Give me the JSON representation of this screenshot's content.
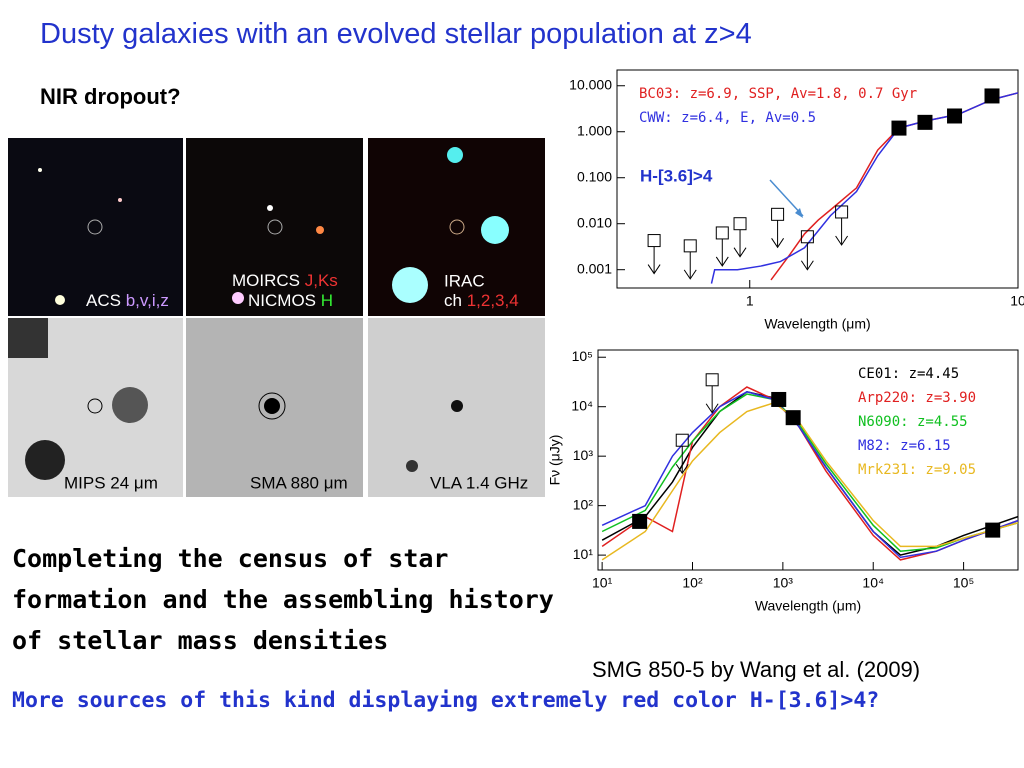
{
  "title": "Dusty galaxies with an evolved stellar population at z>4",
  "subtitle": "NIR dropout?",
  "panels": [
    {
      "label": "ACS",
      "bands": "b,v,i,z"
    },
    {
      "label": "MOIRCS",
      "bands": "J,Ks",
      "label2": "NICMOS",
      "bands2": "H"
    },
    {
      "label": "IRAC",
      "label2": "ch",
      "bands2": "1,2,3,4"
    },
    {
      "label": "MIPS 24 μm"
    },
    {
      "label": "SMA 880 μm"
    },
    {
      "label": "VLA 1.4 GHz"
    }
  ],
  "body": "Completing the census of star formation and the assembling history of stellar mass densities",
  "caption": "SMG 850-5 by Wang et al. (2009)",
  "question": "More sources of this kind displaying extremely red color H-[3.6]>4?",
  "chart_data": [
    {
      "type": "line",
      "xlabel": "Wavelength (μm)",
      "xscale": "log",
      "yscale": "log",
      "xlim": [
        0.32,
        10
      ],
      "ylim": [
        0.0004,
        22
      ],
      "xticks": [
        1,
        10
      ],
      "yticks": [
        {
          "value": 10,
          "label": "10.000"
        },
        {
          "value": 1,
          "label": "1.000"
        },
        {
          "value": 0.1,
          "label": "0.100"
        },
        {
          "value": 0.01,
          "label": "0.010"
        },
        {
          "value": 0.001,
          "label": "0.001"
        }
      ],
      "legend": "upper left",
      "annotation": "H-[3.6]>4",
      "series": [
        {
          "name": "BC03: z=6.9, SSP, Av=1.8, 0.7 Gyr",
          "color": "#e02020",
          "marker": "none",
          "x": [
            1.2,
            1.4,
            1.6,
            1.8,
            2.0,
            2.5,
            3,
            3.6,
            4.5,
            6,
            8,
            10
          ],
          "values": [
            0.0006,
            0.002,
            0.006,
            0.012,
            0.02,
            0.06,
            0.4,
            1.2,
            1.7,
            2.4,
            5,
            7
          ]
        },
        {
          "name": "CWW:  z=6.4, E, Av=0.5",
          "color": "#3030e0",
          "marker": "none",
          "x": [
            0.72,
            0.74,
            0.9,
            1.1,
            1.3,
            1.6,
            2,
            2.5,
            3,
            3.6,
            4.5,
            6,
            8,
            10
          ],
          "values": [
            0.0005,
            0.001,
            0.001,
            0.0012,
            0.0015,
            0.003,
            0.015,
            0.05,
            0.3,
            1.2,
            1.7,
            2.4,
            5,
            7
          ]
        },
        {
          "color": "#000000",
          "marker": "square-filled",
          "x": [
            3.6,
            4.5,
            5.8,
            8.0
          ],
          "values": [
            1.2,
            1.6,
            2.2,
            6
          ]
        },
        {
          "color": "#000000",
          "marker": "square-open",
          "x": [
            0.44,
            0.6,
            0.79,
            0.92,
            1.27,
            1.64,
            2.2
          ],
          "values": [
            0.0043,
            0.0033,
            0.0063,
            0.01,
            0.016,
            0.0052,
            0.018
          ]
        }
      ]
    },
    {
      "type": "line",
      "xlabel": "Wavelength (μm)",
      "ylabel": "Fν (μJy)",
      "xscale": "log",
      "yscale": "log",
      "xlim": [
        9,
        400000
      ],
      "ylim": [
        5,
        140000
      ],
      "xticks": [
        {
          "value": 10,
          "label": "10¹"
        },
        {
          "value": 100,
          "label": "10²"
        },
        {
          "value": 1000,
          "label": "10³"
        },
        {
          "value": 10000,
          "label": "10⁴"
        },
        {
          "value": 100000,
          "label": "10⁵"
        }
      ],
      "yticks": [
        {
          "value": 10,
          "label": "10¹"
        },
        {
          "value": 100,
          "label": "10²"
        },
        {
          "value": 1000,
          "label": "10³"
        },
        {
          "value": 10000,
          "label": "10⁴"
        },
        {
          "value": 100000,
          "label": "10⁵"
        }
      ],
      "legend": "upper right",
      "series": [
        {
          "name": "CE01: z=4.45",
          "color": "#000000",
          "marker": "none",
          "x": [
            10,
            30,
            60,
            100,
            200,
            400,
            800,
            1500,
            3000,
            10000,
            20000,
            50000,
            100000,
            400000
          ],
          "values": [
            20,
            60,
            300,
            1500,
            8000,
            20000,
            15000,
            4000,
            600,
            30,
            10,
            15,
            25,
            60
          ]
        },
        {
          "name": "Arp220: z=3.90",
          "color": "#e02020",
          "marker": "none",
          "x": [
            10,
            30,
            60,
            100,
            200,
            400,
            800,
            1500,
            3000,
            10000,
            20000,
            50000,
            100000,
            400000
          ],
          "values": [
            15,
            60,
            30,
            2000,
            10000,
            25000,
            14000,
            4000,
            500,
            25,
            8,
            12,
            20,
            50
          ]
        },
        {
          "name": "N6090: z=4.55",
          "color": "#10c020",
          "marker": "none",
          "x": [
            10,
            30,
            60,
            100,
            200,
            400,
            800,
            1500,
            3000,
            10000,
            20000,
            50000,
            100000,
            400000
          ],
          "values": [
            30,
            80,
            600,
            2000,
            8000,
            18000,
            14000,
            4500,
            700,
            40,
            12,
            14,
            22,
            45
          ]
        },
        {
          "name": "M82: z=6.15",
          "color": "#3030e0",
          "marker": "none",
          "x": [
            10,
            30,
            60,
            100,
            200,
            400,
            800,
            1500,
            3000,
            10000,
            20000,
            50000,
            100000,
            400000
          ],
          "values": [
            40,
            100,
            1000,
            3000,
            10000,
            20000,
            14000,
            4000,
            600,
            30,
            9,
            12,
            20,
            50
          ]
        },
        {
          "name": "Mrk231: z=9.05",
          "color": "#e8b820",
          "marker": "none",
          "x": [
            10,
            30,
            60,
            100,
            200,
            400,
            800,
            1500,
            3000,
            10000,
            20000,
            50000,
            100000,
            400000
          ],
          "values": [
            8,
            30,
            200,
            800,
            3000,
            8000,
            12000,
            5000,
            800,
            50,
            15,
            15,
            22,
            45
          ]
        },
        {
          "color": "#000000",
          "marker": "square-filled",
          "x": [
            26,
            900,
            1300,
            210000
          ],
          "values": [
            48,
            14000,
            6000,
            32
          ]
        },
        {
          "color": "#000000",
          "marker": "square-open",
          "x": [
            77,
            165
          ],
          "values": [
            2100,
            35000
          ]
        }
      ]
    }
  ]
}
